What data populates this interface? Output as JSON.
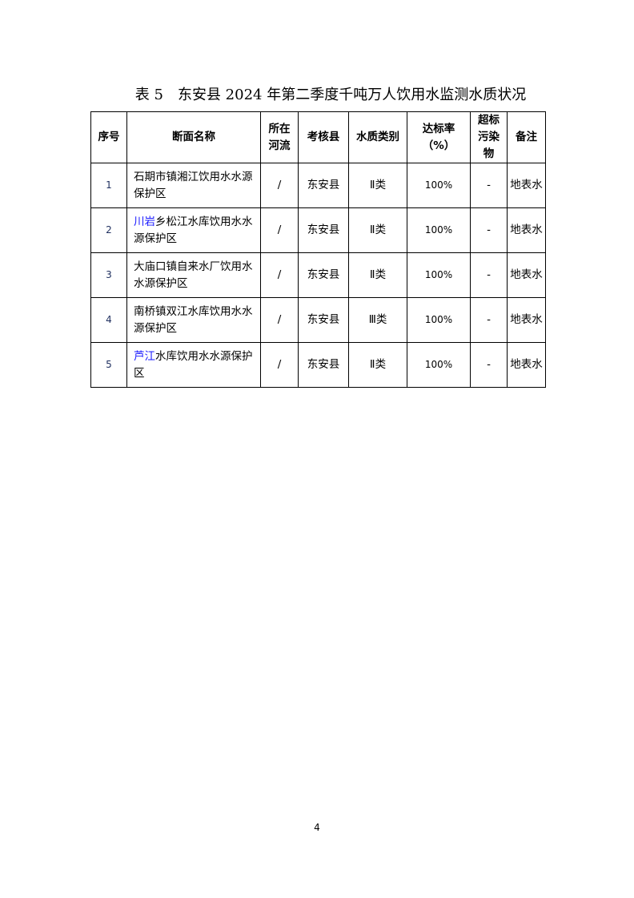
{
  "title": "表 5　东安县 2024 年第二季度千吨万人饮用水监测水质状况",
  "headers": [
    "序号",
    "断面名称",
    "所在河流",
    "考核县",
    "水质类别",
    "达标率（%）",
    "超标污染物",
    "备注"
  ],
  "rows": [
    {
      "no": "1",
      "name_hl": "",
      "name": "石期市镇湘江饮用水水源保护区",
      "river": "/",
      "county": "东安县",
      "class": "Ⅱ类",
      "rate": "100%",
      "pollutant": "-",
      "note": "地表水"
    },
    {
      "no": "2",
      "name_hl": "川岩",
      "name": "乡松江水库饮用水水源保护区",
      "river": "/",
      "county": "东安县",
      "class": "Ⅱ类",
      "rate": "100%",
      "pollutant": "-",
      "note": "地表水"
    },
    {
      "no": "3",
      "name_hl": "",
      "name": "大庙口镇自来水厂饮用水水源保护区",
      "river": "/",
      "county": "东安县",
      "class": "Ⅱ类",
      "rate": "100%",
      "pollutant": "-",
      "note": "地表水"
    },
    {
      "no": "4",
      "name_hl": "",
      "name": "南桥镇双江水库饮用水水源保护区",
      "river": "/",
      "county": "东安县",
      "class": "Ⅲ类",
      "rate": "100%",
      "pollutant": "-",
      "note": "地表水"
    },
    {
      "no": "5",
      "name_hl": "芦江",
      "name": "水库饮用水水源保护区",
      "river": "/",
      "county": "东安县",
      "class": "Ⅱ类",
      "rate": "100%",
      "pollutant": "-",
      "note": "地表水"
    }
  ],
  "page_number": "4",
  "colors": {
    "highlight": "#1a1aff"
  }
}
